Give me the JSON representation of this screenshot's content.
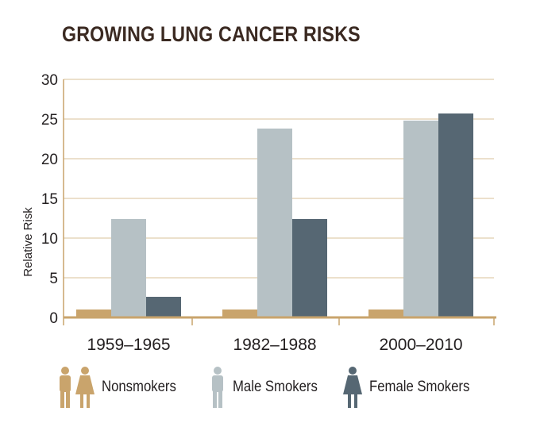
{
  "chart_data": {
    "type": "bar",
    "title": "GROWING LUNG CANCER RISKS",
    "ylabel": "Relative Risk",
    "xlabel": "",
    "ylim": [
      0,
      30
    ],
    "yticks": [
      0,
      5,
      10,
      15,
      20,
      25,
      30
    ],
    "grid": true,
    "categories": [
      "1959–1965",
      "1982–1988",
      "2000–2010"
    ],
    "series": [
      {
        "name": "Nonsmokers",
        "color": "#c9a46c",
        "values": [
          1,
          1,
          1
        ]
      },
      {
        "name": "Male Smokers",
        "color": "#b6c1c5",
        "values": [
          12.4,
          23.8,
          24.8
        ]
      },
      {
        "name": "Female Smokers",
        "color": "#566773",
        "values": [
          2.6,
          12.4,
          25.7
        ]
      }
    ],
    "legend_position": "bottom",
    "axis_color": "#c9a46c",
    "grid_color": "#d8c29a"
  },
  "legend": {
    "nonsmokers": {
      "label": "Nonsmokers",
      "icon": "man-and-woman-icon"
    },
    "male": {
      "label": "Male Smokers",
      "icon": "man-icon"
    },
    "female": {
      "label": "Female Smokers",
      "icon": "woman-icon"
    }
  }
}
